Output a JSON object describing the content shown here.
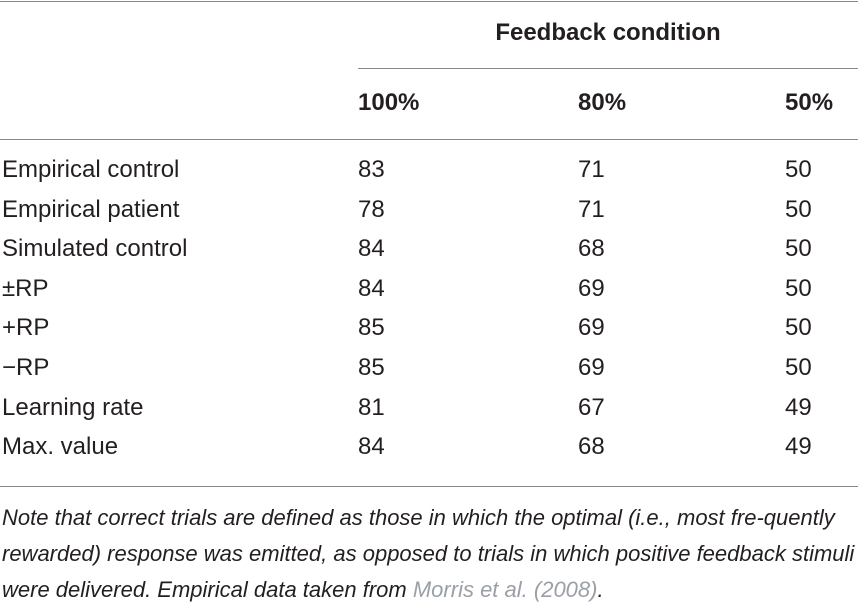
{
  "table": {
    "group_header": "Feedback condition",
    "columns": [
      "100%",
      "80%",
      "50%"
    ],
    "rows": [
      {
        "label": "Empirical control",
        "values": [
          "83",
          "71",
          "50"
        ]
      },
      {
        "label": "Empirical patient",
        "values": [
          "78",
          "71",
          "50"
        ]
      },
      {
        "label": "Simulated control",
        "values": [
          "84",
          "68",
          "50"
        ]
      },
      {
        "label": "±RP",
        "values": [
          "84",
          "69",
          "50"
        ]
      },
      {
        "label": "+RP",
        "values": [
          "85",
          "69",
          "50"
        ]
      },
      {
        "label": "−RP",
        "values": [
          "85",
          "69",
          "50"
        ]
      },
      {
        "label": "Learning rate",
        "values": [
          "81",
          "67",
          "49"
        ]
      },
      {
        "label": "Max. value",
        "values": [
          "84",
          "68",
          "49"
        ]
      }
    ]
  },
  "note": {
    "text_before": "Note that correct trials are defined as those in which the optimal (i.e., most fre-quently rewarded) response was emitted, as opposed to trials in which positive feedback stimuli were delivered. Empirical data taken from ",
    "reference": "Morris et al. (2008)",
    "text_after": "."
  }
}
